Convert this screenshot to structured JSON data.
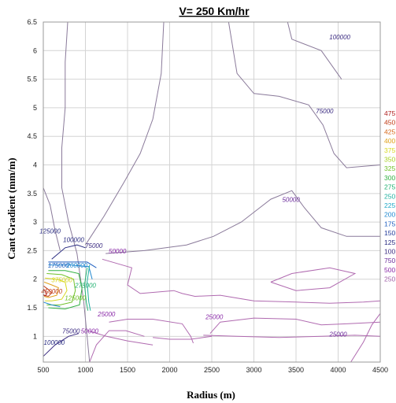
{
  "chart_data": {
    "type": "contour",
    "title": "V= 250 Km/hr",
    "xlabel": "Radius (m)",
    "ylabel": "Cant Gradient (mm/m)",
    "xlim": [
      500,
      4500
    ],
    "ylim": [
      0.55,
      6.5
    ],
    "x_ticks": [
      500,
      1000,
      1500,
      2000,
      2500,
      3000,
      3500,
      4000,
      4500
    ],
    "y_ticks": [
      "1",
      "1.5",
      "2",
      "2.5",
      "3",
      "3.5",
      "4",
      "4.5",
      "5",
      "5.5",
      "6",
      "6.5"
    ],
    "grid": true,
    "legend": {
      "placement": "right",
      "entries": [
        "475",
        "450",
        "425",
        "400",
        "375",
        "350",
        "325",
        "300",
        "275",
        "250",
        "225",
        "200",
        "175",
        "150",
        "125",
        "100",
        "750",
        "500",
        "250"
      ],
      "colors": [
        "#b02020",
        "#c03a14",
        "#d86a1c",
        "#e0a018",
        "#d8d820",
        "#a8d020",
        "#70c028",
        "#30b040",
        "#20b070",
        "#20b0a0",
        "#20a8c8",
        "#2088d0",
        "#2060c0",
        "#203a9a",
        "#282a80",
        "#3a2a80",
        "#6a2a9a",
        "#8a2aa8",
        "#a060a8"
      ]
    },
    "contour_labels": [
      {
        "text": "100000",
        "x": 4020,
        "y": 6.2,
        "color": "#3a2a80"
      },
      {
        "text": "75000",
        "x": 3840,
        "y": 4.9,
        "color": "#3a2a80"
      },
      {
        "text": "50000",
        "x": 3440,
        "y": 3.35,
        "color": "#6a2a9a"
      },
      {
        "text": "50000",
        "x": 1380,
        "y": 2.45,
        "color": "#8a2aa8"
      },
      {
        "text": "25000",
        "x": 4000,
        "y": 1.0,
        "color": "#6a2a9a"
      },
      {
        "text": "25000",
        "x": 2530,
        "y": 1.3,
        "color": "#8a2aa8"
      },
      {
        "text": "25000",
        "x": 1250,
        "y": 1.35,
        "color": "#8a2aa8"
      },
      {
        "text": "50000",
        "x": 1050,
        "y": 1.05,
        "color": "#8a2aa8"
      },
      {
        "text": "75000",
        "x": 830,
        "y": 1.05,
        "color": "#3a2a80"
      },
      {
        "text": "100000",
        "x": 630,
        "y": 0.85,
        "color": "#282a80"
      },
      {
        "text": "125000",
        "x": 580,
        "y": 2.8,
        "color": "#282a80"
      },
      {
        "text": "100000",
        "x": 860,
        "y": 2.65,
        "color": "#282a80"
      },
      {
        "text": "75000",
        "x": 1100,
        "y": 2.55,
        "color": "#3a2a80"
      },
      {
        "text": "175000",
        "x": 680,
        "y": 2.2,
        "color": "#2060c0"
      },
      {
        "text": "200000",
        "x": 900,
        "y": 2.2,
        "color": "#2088d0"
      },
      {
        "text": "375000",
        "x": 720,
        "y": 1.95,
        "color": "#d8d820"
      },
      {
        "text": "450000",
        "x": 600,
        "y": 1.75,
        "color": "#c03a14"
      },
      {
        "text": "125000",
        "x": 880,
        "y": 1.63,
        "color": "#70c028"
      },
      {
        "text": "275000",
        "x": 1000,
        "y": 1.85,
        "color": "#20b070"
      }
    ]
  }
}
